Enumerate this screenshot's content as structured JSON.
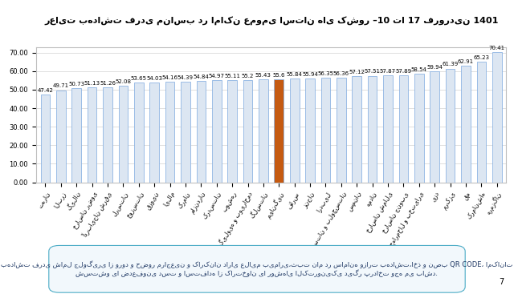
{
  "chart_data": {
    "type": "bar",
    "title": "رعایت بهداشت فردی مناسب در اماکن عمومی استان های کشور –10 تا 17 فروردین 1401",
    "categories": [
      "تهران",
      "البرز",
      "گیلان",
      "خراسان رضوی",
      "آذربایجان شرقی",
      "لرستان",
      "خوزستان",
      "قزوین",
      "ایلام",
      "کرمان",
      "مازندران",
      "کردستان",
      "بوشهر",
      "کهگیلویه و بویراحمد",
      "گلستان",
      "میانگین",
      "فارس",
      "زنجان",
      "اردبیل",
      "سیستان و بلوچستان",
      "سمنان",
      "همدان",
      "خراسان شمالی",
      "خراسان جنوبی",
      "چهارمحال و بختیاری",
      "یزد",
      "مرکزی",
      "قم",
      "کرمانشاه",
      "هرمزگان"
    ],
    "values": [
      47.42,
      49.71,
      50.73,
      51.13,
      51.26,
      52.08,
      53.65,
      54.03,
      54.16,
      54.39,
      54.84,
      54.97,
      55.11,
      55.2,
      55.43,
      55.6,
      55.84,
      55.94,
      56.35,
      56.36,
      57.12,
      57.51,
      57.87,
      57.89,
      58.54,
      59.94,
      61.39,
      62.91,
      65.23,
      70.41
    ],
    "colors": [
      "#dce6f2",
      "#dce6f2",
      "#dce6f2",
      "#dce6f2",
      "#dce6f2",
      "#dce6f2",
      "#dce6f2",
      "#dce6f2",
      "#dce6f2",
      "#dce6f2",
      "#dce6f2",
      "#dce6f2",
      "#dce6f2",
      "#dce6f2",
      "#dce6f2",
      "#c55a11",
      "#dce6f2",
      "#dce6f2",
      "#dce6f2",
      "#dce6f2",
      "#dce6f2",
      "#dce6f2",
      "#dce6f2",
      "#dce6f2",
      "#dce6f2",
      "#dce6f2",
      "#dce6f2",
      "#dce6f2",
      "#dce6f2",
      "#dce6f2"
    ],
    "ylim": [
      0,
      73
    ],
    "yticks": [
      {
        "value": 0,
        "label": "0.00"
      },
      {
        "value": 10,
        "label": "10.00"
      },
      {
        "value": 20,
        "label": "20.00"
      },
      {
        "value": 30,
        "label": "30.00"
      },
      {
        "value": 40,
        "label": "40.00"
      },
      {
        "value": 50,
        "label": "50.00"
      },
      {
        "value": 60,
        "label": "60.00"
      },
      {
        "value": 70,
        "label": "70.00"
      }
    ],
    "grid": true,
    "data_labels": true,
    "note": "بهداشت فردی شامل جلوگیری از ورود و حضور مراجعین و کارکنان دارای علایم بیماری،ثبت نام در سامانه وزارت بهداشت،اخذ و نصب QR CODE، امکانات شستشو یا ضدعفونی دست و استفاده از کارتخوان یا روشهای الکترونیکی دیگر پرداخت وجه می باشد.",
    "page": "7"
  }
}
